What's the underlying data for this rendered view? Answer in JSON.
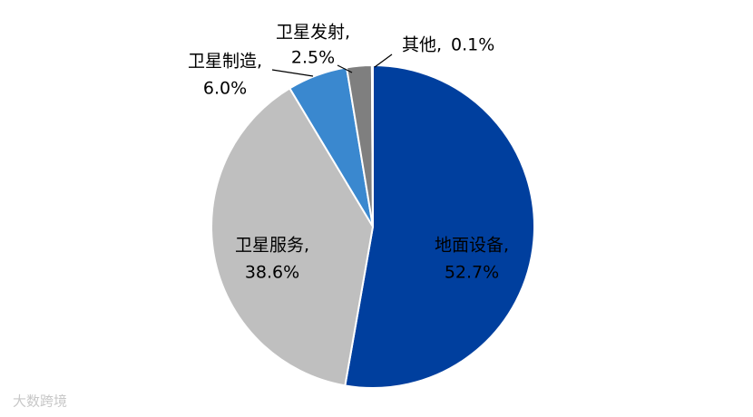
{
  "chart_data": {
    "type": "pie",
    "categories": [
      "地面设备,",
      "卫星服务,",
      "卫星制造,",
      "卫星发射,",
      "其他,"
    ],
    "values": [
      52.7,
      38.6,
      6.0,
      2.5,
      0.1
    ],
    "value_labels": [
      "52.7%",
      "38.6%",
      "6.0%",
      "2.5%",
      "0.1%"
    ],
    "colors": [
      "#003f9e",
      "#bfbfbf",
      "#3a88cf",
      "#7f7f7f",
      "#bdd7ee"
    ]
  },
  "watermark": "大数跨境"
}
